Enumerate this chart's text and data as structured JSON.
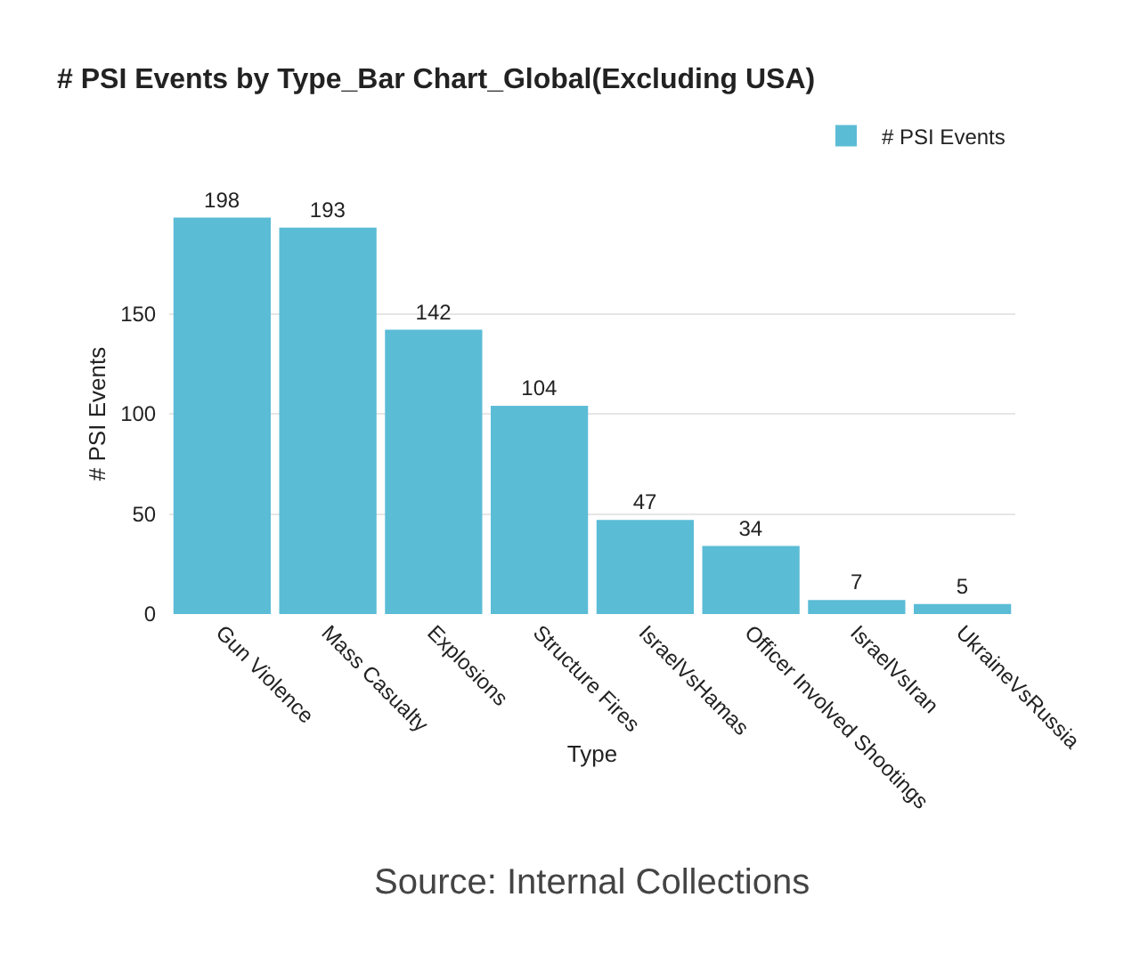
{
  "chart_data": {
    "type": "bar",
    "title": "# PSI Events by Type_Bar Chart_Global(Excluding USA)",
    "xlabel": "Type",
    "ylabel": "# PSI Events",
    "categories": [
      "Gun Violence",
      "Mass Casualty",
      "Explosions",
      "Structure Fires",
      "IsraelVsHamas",
      "Officer Involved Shootings",
      "IsraelVsIran",
      "UkraineVsRussia"
    ],
    "series": [
      {
        "name": "# PSI Events",
        "color": "#5bbcd6",
        "values": [
          198,
          193,
          142,
          104,
          47,
          34,
          7,
          5
        ]
      }
    ],
    "ylim": [
      0,
      200
    ],
    "yticks": [
      0,
      50,
      100,
      150
    ],
    "grid": "y",
    "legend": "top right",
    "data_labels": true,
    "annotations": [
      "Source: Internal Collections"
    ]
  }
}
